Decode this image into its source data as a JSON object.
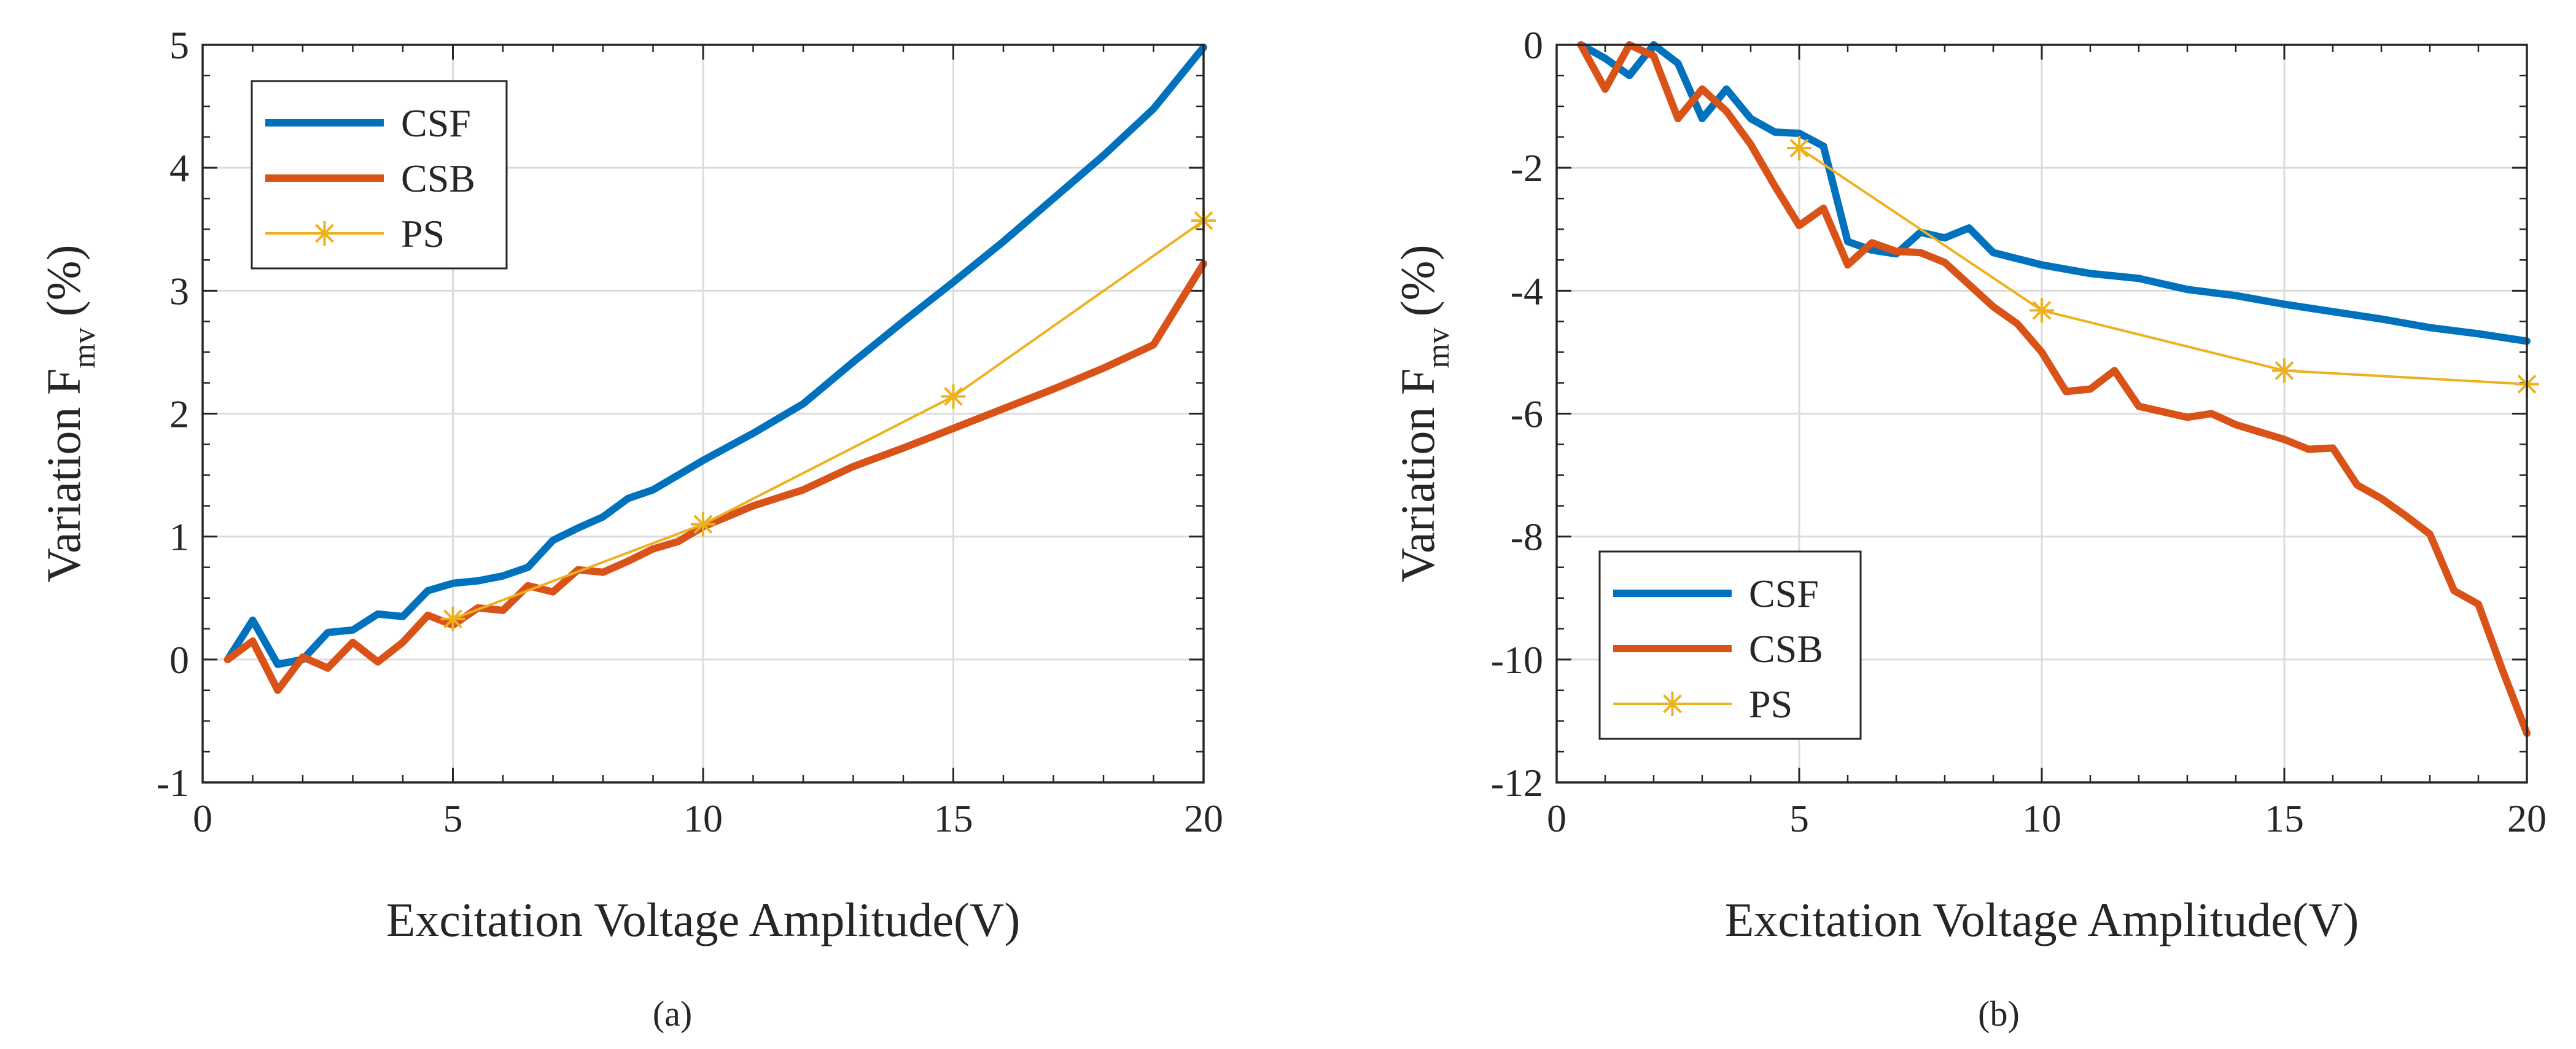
{
  "figure": {
    "panels": [
      "(a)",
      "(b)"
    ]
  },
  "colors": {
    "CSF": "#0072BD",
    "CSB": "#D95319",
    "PS": "#EDB120",
    "axis": "#262626",
    "grid": "#dcdcdc"
  },
  "chart_data": [
    {
      "type": "line",
      "panel_label": "(a)",
      "title": "",
      "xlabel": "Excitation Voltage Amplitude(V)",
      "ylabel_main": "Variation F",
      "ylabel_sub": "mv",
      "ylabel_unit": "(%)",
      "xlim": [
        0,
        20
      ],
      "ylim": [
        -1,
        5
      ],
      "xticks": [
        0,
        5,
        10,
        15,
        20
      ],
      "yticks": [
        -1,
        0,
        1,
        2,
        3,
        4,
        5
      ],
      "grid": true,
      "legend": "top-left",
      "series": [
        {
          "name": "CSF",
          "marker": "none",
          "x": [
            0.5,
            1,
            1.5,
            2,
            2.5,
            3,
            3.5,
            4,
            4.5,
            5,
            5.5,
            6,
            6.5,
            7,
            7.5,
            8,
            8.5,
            9,
            9.5,
            10,
            11,
            12,
            13,
            14,
            15,
            16,
            17,
            18,
            19,
            20
          ],
          "y": [
            0.0,
            0.32,
            -0.04,
            0.0,
            0.22,
            0.24,
            0.37,
            0.35,
            0.56,
            0.62,
            0.64,
            0.68,
            0.75,
            0.97,
            1.07,
            1.16,
            1.31,
            1.38,
            1.5,
            1.62,
            1.84,
            2.08,
            2.42,
            2.75,
            3.07,
            3.4,
            3.75,
            4.1,
            4.48,
            4.98
          ]
        },
        {
          "name": "CSB",
          "marker": "none",
          "x": [
            0.5,
            1,
            1.5,
            2,
            2.5,
            3,
            3.5,
            4,
            4.5,
            5,
            5.5,
            6,
            6.5,
            7,
            7.5,
            8,
            8.5,
            9,
            9.5,
            10,
            11,
            12,
            13,
            14,
            15,
            16,
            17,
            18,
            19,
            20
          ],
          "y": [
            0.0,
            0.15,
            -0.25,
            0.02,
            -0.07,
            0.14,
            -0.02,
            0.14,
            0.36,
            0.28,
            0.42,
            0.4,
            0.6,
            0.55,
            0.73,
            0.71,
            0.8,
            0.9,
            0.96,
            1.08,
            1.25,
            1.38,
            1.57,
            1.72,
            1.88,
            2.04,
            2.2,
            2.37,
            2.56,
            3.22
          ]
        },
        {
          "name": "PS",
          "marker": "asterisk",
          "x": [
            5,
            10,
            15,
            20
          ],
          "y": [
            0.33,
            1.1,
            2.14,
            3.57
          ]
        }
      ]
    },
    {
      "type": "line",
      "panel_label": "(b)",
      "title": "",
      "xlabel": "Excitation Voltage Amplitude(V)",
      "ylabel_main": "Variation F",
      "ylabel_sub": "mv",
      "ylabel_unit": "(%)",
      "xlim": [
        0,
        20
      ],
      "ylim": [
        -12,
        0
      ],
      "xticks": [
        0,
        5,
        10,
        15,
        20
      ],
      "yticks": [
        -12,
        -10,
        -8,
        -6,
        -4,
        -2,
        0
      ],
      "grid": true,
      "legend": "bottom-left",
      "series": [
        {
          "name": "CSF",
          "marker": "none",
          "x": [
            0.5,
            1,
            1.5,
            2,
            2.5,
            3,
            3.5,
            4,
            4.5,
            5,
            5.5,
            6,
            6.5,
            7,
            7.5,
            8,
            8.5,
            9,
            9.5,
            10,
            11,
            12,
            13,
            14,
            15,
            16,
            17,
            18,
            19,
            20
          ],
          "y": [
            0.0,
            -0.22,
            -0.5,
            0.0,
            -0.3,
            -1.2,
            -0.72,
            -1.2,
            -1.42,
            -1.44,
            -1.65,
            -3.2,
            -3.34,
            -3.4,
            -3.05,
            -3.14,
            -2.98,
            -3.38,
            -3.48,
            -3.58,
            -3.72,
            -3.8,
            -3.98,
            -4.08,
            -4.22,
            -4.34,
            -4.46,
            -4.6,
            -4.7,
            -4.82
          ]
        },
        {
          "name": "CSB",
          "marker": "none",
          "x": [
            0.5,
            1,
            1.5,
            2,
            2.5,
            3,
            3.5,
            4,
            4.5,
            5,
            5.5,
            6,
            6.5,
            7,
            7.5,
            8,
            8.5,
            9,
            9.5,
            10,
            10.5,
            11,
            11.5,
            12,
            13,
            13.5,
            14,
            15,
            15.5,
            16,
            16.5,
            17,
            17.5,
            18,
            18.5,
            19,
            19.5,
            20
          ],
          "y": [
            0.0,
            -0.72,
            0.0,
            -0.18,
            -1.2,
            -0.72,
            -1.08,
            -1.62,
            -2.3,
            -2.94,
            -2.66,
            -3.58,
            -3.22,
            -3.36,
            -3.38,
            -3.54,
            -3.9,
            -4.26,
            -4.54,
            -5.0,
            -5.64,
            -5.6,
            -5.3,
            -5.88,
            -6.06,
            -6.0,
            -6.18,
            -6.42,
            -6.58,
            -6.56,
            -7.16,
            -7.38,
            -7.66,
            -7.96,
            -8.88,
            -9.1,
            -10.18,
            -11.2
          ]
        },
        {
          "name": "PS",
          "marker": "asterisk",
          "x": [
            5,
            10,
            15,
            20
          ],
          "y": [
            -1.68,
            -4.32,
            -5.3,
            -5.52
          ]
        }
      ]
    }
  ]
}
